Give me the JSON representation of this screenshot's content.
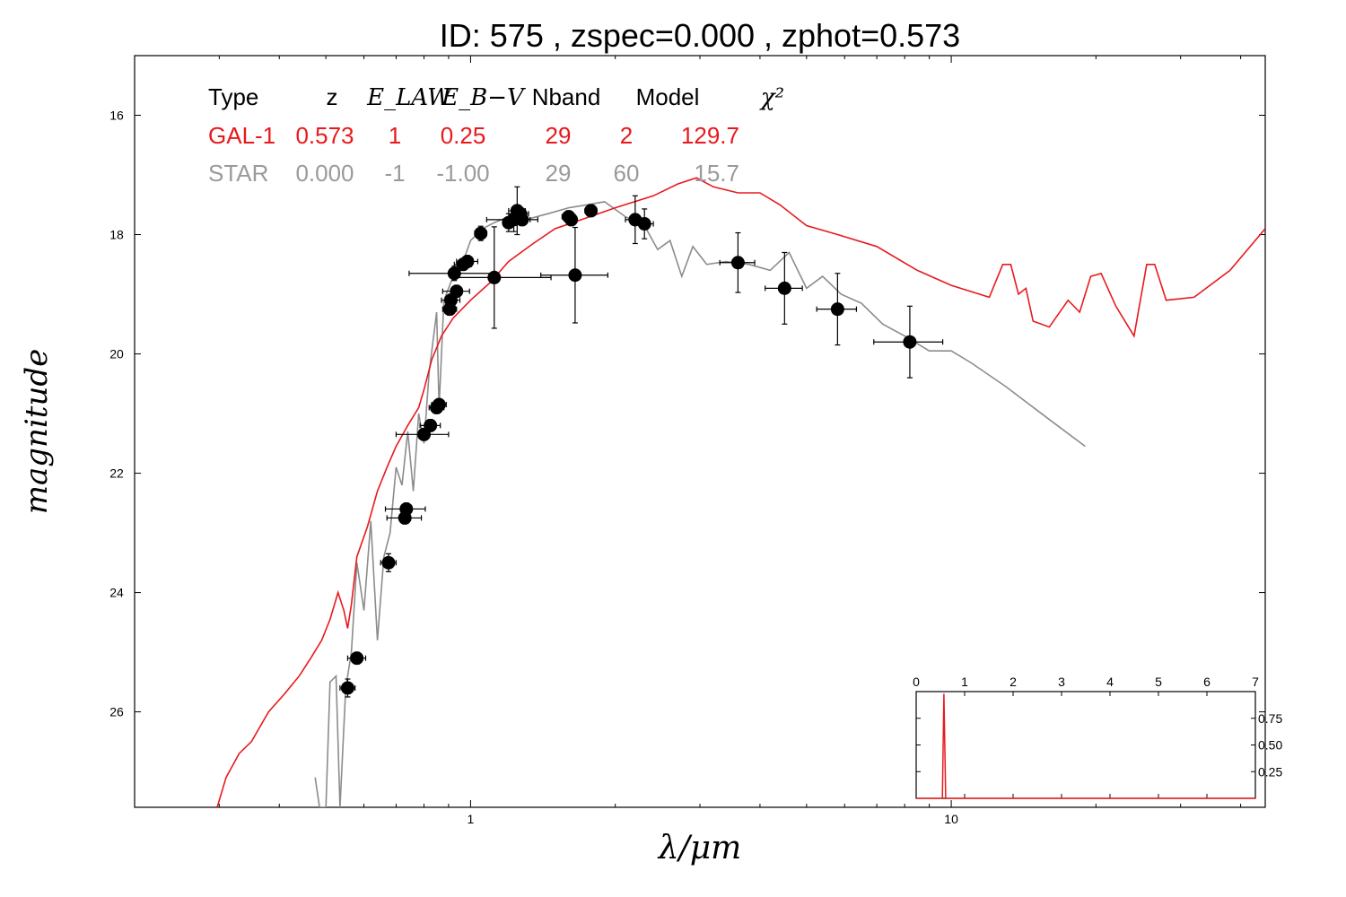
{
  "chart_data": {
    "type": "line",
    "title": "ID:  575   , zspec=0.000 , zphot=0.573",
    "xlabel": "λ/μm",
    "ylabel": "magnitude",
    "x_scale": "log",
    "xlim": [
      0.2,
      45
    ],
    "ylim": [
      27.6,
      15
    ],
    "y_inverted": true,
    "grid": false,
    "x_ticks": [
      1,
      10
    ],
    "x_tick_labels": [
      "1",
      "10"
    ],
    "y_ticks": [
      16,
      18,
      20,
      22,
      24,
      26
    ],
    "y_tick_labels": [
      "16",
      "18",
      "20",
      "22",
      "24",
      "26"
    ],
    "legend_table": {
      "headers": [
        "Type",
        "z",
        "E_LAW",
        "E_B−V",
        "Nband",
        "Model",
        "χ²"
      ],
      "rows": [
        {
          "type": "GAL-1",
          "z": "0.573",
          "elaw": "1",
          "ebv": "0.25",
          "nband": "29",
          "model": "2",
          "chi2": "129.7",
          "color": "#e8191d"
        },
        {
          "type": "STAR",
          "z": "0.000",
          "elaw": "-1",
          "ebv": "-1.00",
          "nband": "29",
          "model": "60",
          "chi2": "15.7",
          "color": "#9a9a9a"
        }
      ]
    },
    "series": [
      {
        "name": "GAL-1",
        "color": "#e8191d",
        "points": [
          [
            0.297,
            27.6
          ],
          [
            0.31,
            27.1
          ],
          [
            0.33,
            26.7
          ],
          [
            0.35,
            26.5
          ],
          [
            0.38,
            26.0
          ],
          [
            0.41,
            25.7
          ],
          [
            0.44,
            25.4
          ],
          [
            0.465,
            25.1
          ],
          [
            0.49,
            24.8
          ],
          [
            0.51,
            24.45
          ],
          [
            0.53,
            24.0
          ],
          [
            0.545,
            24.3
          ],
          [
            0.555,
            24.6
          ],
          [
            0.565,
            24.2
          ],
          [
            0.58,
            23.4
          ],
          [
            0.61,
            22.9
          ],
          [
            0.64,
            22.3
          ],
          [
            0.67,
            21.9
          ],
          [
            0.7,
            21.55
          ],
          [
            0.74,
            21.2
          ],
          [
            0.78,
            20.9
          ],
          [
            0.8,
            20.6
          ],
          [
            0.83,
            20.1
          ],
          [
            0.87,
            19.7
          ],
          [
            0.92,
            19.4
          ],
          [
            1.0,
            19.1
          ],
          [
            1.1,
            18.8
          ],
          [
            1.2,
            18.45
          ],
          [
            1.35,
            18.15
          ],
          [
            1.5,
            17.9
          ],
          [
            1.7,
            17.75
          ],
          [
            2.0,
            17.55
          ],
          [
            2.4,
            17.35
          ],
          [
            2.7,
            17.15
          ],
          [
            2.95,
            17.05
          ],
          [
            3.2,
            17.2
          ],
          [
            3.6,
            17.3
          ],
          [
            4.0,
            17.3
          ],
          [
            4.4,
            17.5
          ],
          [
            5.0,
            17.85
          ],
          [
            5.8,
            18.0
          ],
          [
            7.0,
            18.2
          ],
          [
            8.5,
            18.6
          ],
          [
            10.0,
            18.85
          ],
          [
            12.0,
            19.05
          ],
          [
            12.8,
            18.5
          ],
          [
            13.3,
            18.5
          ],
          [
            13.8,
            19.0
          ],
          [
            14.3,
            18.9
          ],
          [
            14.8,
            19.45
          ],
          [
            16.0,
            19.55
          ],
          [
            17.5,
            19.1
          ],
          [
            18.5,
            19.3
          ],
          [
            19.5,
            18.7
          ],
          [
            20.5,
            18.65
          ],
          [
            22.0,
            19.2
          ],
          [
            24.0,
            19.7
          ],
          [
            25.5,
            18.5
          ],
          [
            26.5,
            18.5
          ],
          [
            28.0,
            19.1
          ],
          [
            32.0,
            19.05
          ],
          [
            38.0,
            18.6
          ],
          [
            45.0,
            17.9
          ]
        ]
      },
      {
        "name": "STAR",
        "color": "#8c8c8c",
        "points": [
          [
            0.475,
            27.1
          ],
          [
            0.485,
            27.6
          ],
          [
            0.5,
            27.6
          ],
          [
            0.51,
            25.5
          ],
          [
            0.525,
            25.4
          ],
          [
            0.535,
            27.6
          ],
          [
            0.55,
            25.6
          ],
          [
            0.565,
            25.0
          ],
          [
            0.58,
            23.5
          ],
          [
            0.6,
            24.3
          ],
          [
            0.62,
            22.8
          ],
          [
            0.64,
            24.8
          ],
          [
            0.66,
            23.4
          ],
          [
            0.68,
            23.0
          ],
          [
            0.7,
            21.9
          ],
          [
            0.72,
            22.2
          ],
          [
            0.74,
            21.3
          ],
          [
            0.76,
            22.3
          ],
          [
            0.78,
            21.0
          ],
          [
            0.8,
            21.5
          ],
          [
            0.82,
            20.3
          ],
          [
            0.85,
            19.3
          ],
          [
            0.86,
            20.9
          ],
          [
            0.88,
            19.1
          ],
          [
            0.92,
            18.7
          ],
          [
            0.96,
            18.5
          ],
          [
            1.0,
            18.1
          ],
          [
            1.06,
            17.9
          ],
          [
            1.12,
            17.8
          ],
          [
            1.2,
            17.7
          ],
          [
            1.3,
            17.75
          ],
          [
            1.45,
            17.65
          ],
          [
            1.6,
            17.55
          ],
          [
            1.75,
            17.5
          ],
          [
            1.9,
            17.45
          ],
          [
            2.1,
            17.7
          ],
          [
            2.3,
            17.85
          ],
          [
            2.45,
            18.25
          ],
          [
            2.6,
            18.1
          ],
          [
            2.75,
            18.7
          ],
          [
            2.9,
            18.2
          ],
          [
            3.1,
            18.5
          ],
          [
            3.4,
            18.45
          ],
          [
            3.8,
            18.5
          ],
          [
            4.2,
            18.6
          ],
          [
            4.6,
            18.3
          ],
          [
            5.0,
            18.9
          ],
          [
            5.4,
            18.7
          ],
          [
            5.9,
            19.0
          ],
          [
            6.5,
            19.15
          ],
          [
            7.2,
            19.5
          ],
          [
            8.0,
            19.7
          ],
          [
            9.0,
            19.95
          ],
          [
            10.0,
            19.95
          ],
          [
            11.0,
            20.15
          ],
          [
            13.0,
            20.55
          ],
          [
            16.0,
            21.1
          ],
          [
            19.0,
            21.55
          ]
        ]
      }
    ],
    "observed_points": [
      {
        "x": 0.555,
        "y": 25.6,
        "xerr": [
          0.02,
          0.02
        ],
        "yerr": [
          0.15,
          0.15
        ]
      },
      {
        "x": 0.58,
        "y": 25.1,
        "xerr": [
          0.025,
          0.025
        ],
        "yerr": [
          0.1,
          0.1
        ]
      },
      {
        "x": 0.675,
        "y": 23.5,
        "xerr": [
          0.025,
          0.025
        ],
        "yerr": [
          0.15,
          0.15
        ]
      },
      {
        "x": 0.735,
        "y": 22.6,
        "xerr": [
          0.07,
          0.07
        ],
        "yerr": [
          0.1,
          0.1
        ]
      },
      {
        "x": 0.73,
        "y": 22.75,
        "xerr": [
          0.06,
          0.06
        ],
        "yerr": [
          0.1,
          0.1
        ]
      },
      {
        "x": 0.825,
        "y": 21.2,
        "xerr": [
          0.04,
          0.04
        ],
        "yerr": [
          0.1,
          0.1
        ]
      },
      {
        "x": 0.8,
        "y": 21.35,
        "xerr": [
          0.1,
          0.1
        ],
        "yerr": [
          0.1,
          0.1
        ]
      },
      {
        "x": 0.86,
        "y": 20.85,
        "xerr": [
          0.03,
          0.03
        ],
        "yerr": [
          0.1,
          0.1
        ]
      },
      {
        "x": 0.85,
        "y": 20.9,
        "xerr": [
          0.03,
          0.03
        ],
        "yerr": [
          0.1,
          0.1
        ]
      },
      {
        "x": 0.905,
        "y": 19.25,
        "xerr": [
          0.03,
          0.03
        ],
        "yerr": [
          0.1,
          0.1
        ]
      },
      {
        "x": 0.91,
        "y": 19.1,
        "xerr": [
          0.04,
          0.04
        ],
        "yerr": [
          0.1,
          0.1
        ]
      },
      {
        "x": 0.935,
        "y": 18.95,
        "xerr": [
          0.06,
          0.06
        ],
        "yerr": [
          0.1,
          0.1
        ]
      },
      {
        "x": 0.925,
        "y": 18.65,
        "xerr": [
          0.18,
          0.2
        ],
        "yerr": [
          0.12,
          0.12
        ]
      },
      {
        "x": 0.965,
        "y": 18.5,
        "xerr": [
          0.04,
          0.04
        ],
        "yerr": [
          0.1,
          0.1
        ]
      },
      {
        "x": 0.985,
        "y": 18.45,
        "xerr": [
          0.05,
          0.05
        ],
        "yerr": [
          0.1,
          0.1
        ]
      },
      {
        "x": 1.05,
        "y": 17.98,
        "xerr": [
          0.03,
          0.03
        ],
        "yerr": [
          0.12,
          0.12
        ]
      },
      {
        "x": 1.12,
        "y": 18.72,
        "xerr": [
          0.2,
          0.35
        ],
        "yerr": [
          0.85,
          0.85
        ]
      },
      {
        "x": 1.2,
        "y": 17.8,
        "xerr": [
          0.03,
          0.03
        ],
        "yerr": [
          0.15,
          0.15
        ]
      },
      {
        "x": 1.23,
        "y": 17.75,
        "xerr": [
          0.15,
          0.15
        ],
        "yerr": [
          0.2,
          0.2
        ]
      },
      {
        "x": 1.25,
        "y": 17.6,
        "xerr": [
          0.05,
          0.05
        ],
        "yerr": [
          0.4,
          0.4
        ]
      },
      {
        "x": 1.27,
        "y": 17.65,
        "xerr": [
          0.05,
          0.05
        ],
        "yerr": [
          0.1,
          0.1
        ]
      },
      {
        "x": 1.28,
        "y": 17.75,
        "xerr": [
          0.05,
          0.05
        ],
        "yerr": [
          0.1,
          0.1
        ]
      },
      {
        "x": 1.6,
        "y": 17.7,
        "xerr": [
          0.05,
          0.05
        ],
        "yerr": [
          0.1,
          0.1
        ]
      },
      {
        "x": 1.62,
        "y": 17.75,
        "xerr": [
          0.04,
          0.04
        ],
        "yerr": [
          0.1,
          0.1
        ]
      },
      {
        "x": 1.65,
        "y": 18.68,
        "xerr": [
          0.25,
          0.28
        ],
        "yerr": [
          0.8,
          0.8
        ]
      },
      {
        "x": 1.78,
        "y": 17.6,
        "xerr": [
          0.05,
          0.05
        ],
        "yerr": [
          0.1,
          0.1
        ]
      },
      {
        "x": 2.2,
        "y": 17.75,
        "xerr": [
          0.1,
          0.1
        ],
        "yerr": [
          0.4,
          0.4
        ]
      },
      {
        "x": 2.3,
        "y": 17.82,
        "xerr": [
          0.1,
          0.1
        ],
        "yerr": [
          0.25,
          0.25
        ]
      },
      {
        "x": 3.6,
        "y": 18.47,
        "xerr": [
          0.3,
          0.3
        ],
        "yerr": [
          0.5,
          0.5
        ]
      },
      {
        "x": 4.5,
        "y": 18.9,
        "xerr": [
          0.4,
          0.4
        ],
        "yerr": [
          0.6,
          0.6
        ]
      },
      {
        "x": 5.8,
        "y": 19.25,
        "xerr": [
          0.55,
          0.55
        ],
        "yerr": [
          0.6,
          0.6
        ]
      },
      {
        "x": 8.2,
        "y": 19.8,
        "xerr": [
          1.3,
          1.4
        ],
        "yerr": [
          0.6,
          0.6
        ]
      }
    ],
    "inset": {
      "type": "line",
      "xlim": [
        0,
        7
      ],
      "ylim": [
        0,
        1.0
      ],
      "x_ticks": [
        0,
        1,
        2,
        3,
        4,
        5,
        6,
        7
      ],
      "x_tick_labels": [
        "0",
        "1",
        "2",
        "3",
        "4",
        "5",
        "6",
        "7"
      ],
      "y_ticks": [
        0.25,
        0.5,
        0.75
      ],
      "y_tick_labels": [
        "0.25",
        "0.50",
        "0.75"
      ],
      "color": "#e8191d",
      "points": [
        [
          0,
          0.0
        ],
        [
          0.54,
          0.0
        ],
        [
          0.573,
          0.98
        ],
        [
          0.61,
          0.0
        ],
        [
          7,
          0.0
        ]
      ]
    }
  }
}
